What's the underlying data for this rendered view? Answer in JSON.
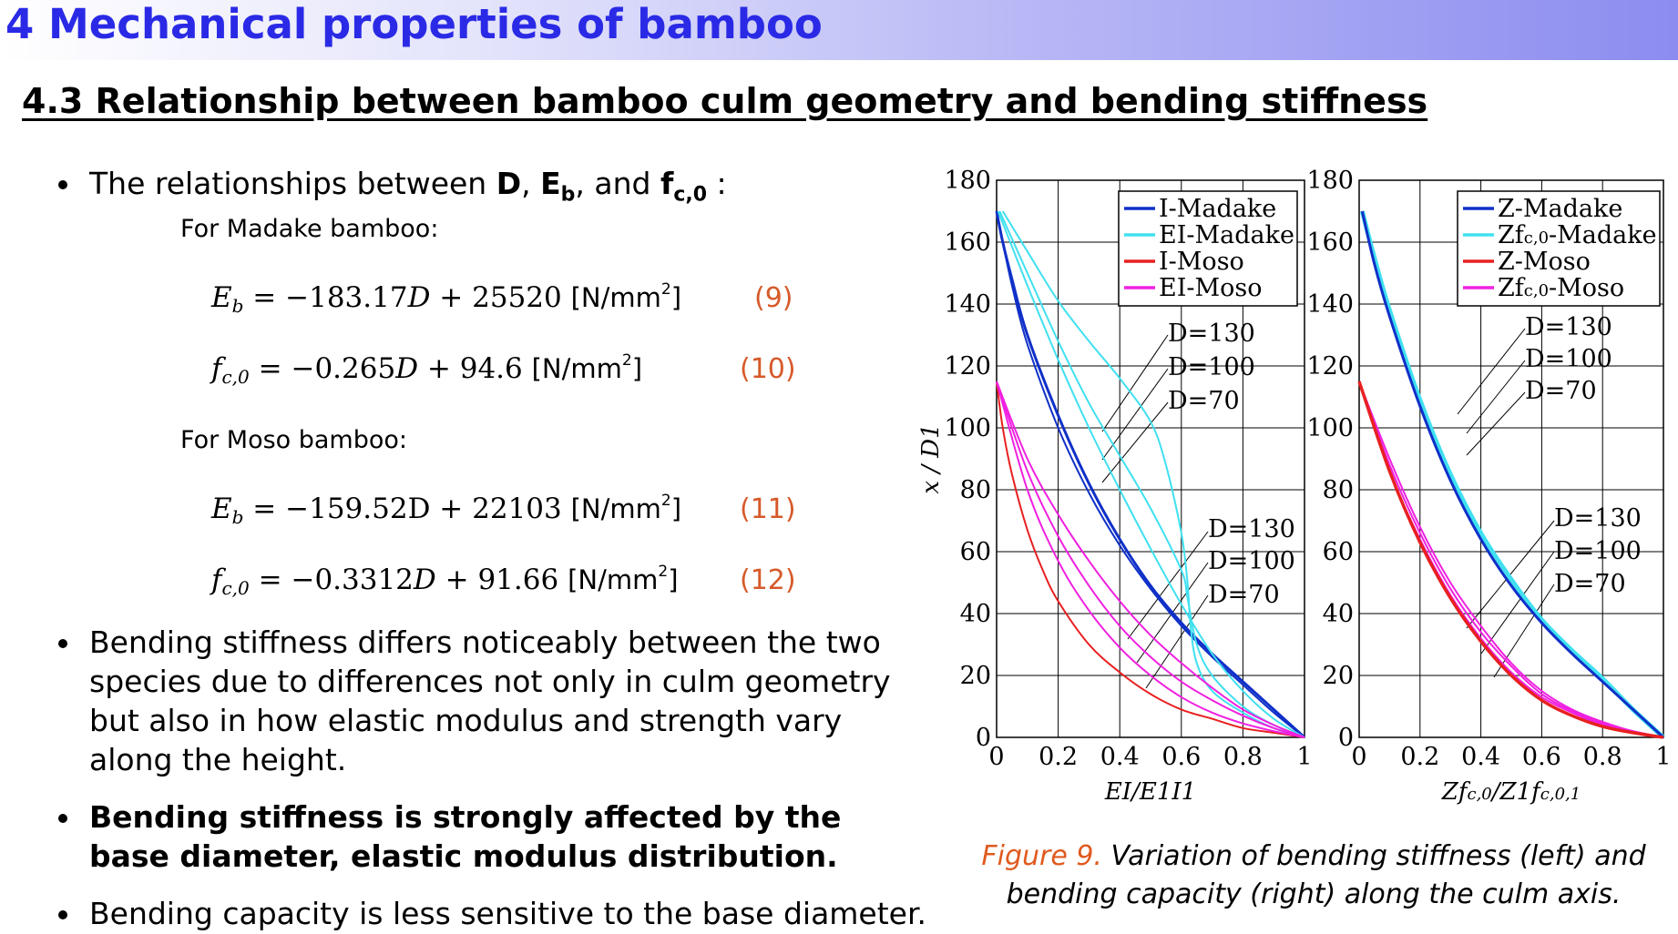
{
  "header": {
    "section_title": "4  Mechanical properties of bamboo",
    "subsection_title": "4.3  Relationship between bamboo culm geometry and bending stiffness"
  },
  "intro": {
    "text_a": "The relationships between ",
    "D": "D",
    "comma1": ", ",
    "E": "E",
    "E_sub": "b",
    "comma2": ", and ",
    "f": "f",
    "f_sub": "c,0",
    "colon": " :"
  },
  "madake": {
    "label": "For Madake bamboo:",
    "eq9": {
      "lhs": "E",
      "lhs_sub": "b",
      "rhs_a": " = −183.17",
      "var": "D",
      "rhs_b": " + 25520 ",
      "unit": "[N/mm",
      "unit_sup": "2",
      "unit_end": "]",
      "num": "(9)"
    },
    "eq10": {
      "lhs": "f",
      "lhs_sub": "c,0",
      "rhs_a": " = −0.265",
      "var": "D",
      "rhs_b": " + 94.6 ",
      "unit": "[N/mm",
      "unit_sup": "2",
      "unit_end": "]",
      "num": "(10)"
    }
  },
  "moso": {
    "label": "For Moso bamboo:",
    "eq11": {
      "lhs": "E",
      "lhs_sub": "b",
      "rhs": " = −159.52D  +  22103 ",
      "unit": "[N/mm",
      "unit_sup": "2",
      "unit_end": "]",
      "num": "(11)"
    },
    "eq12": {
      "lhs": "f",
      "lhs_sub": "c,0",
      "rhs_a": " = −0.3312",
      "var": "D",
      "rhs_b": " + 91.66  ",
      "unit": "[N/mm",
      "unit_sup": "2",
      "unit_end": "]",
      "num": "(12)"
    }
  },
  "bullets": {
    "b2": "Bending stiffness differs noticeably between the two species due to differences not only in culm geometry but also in how elastic modulus and strength vary along the height.",
    "b3": "Bending stiffness is strongly affected by the base diameter, elastic modulus distribution.",
    "b4": "Bending capacity is less sensitive to the base diameter."
  },
  "caption": {
    "fig": "Figure 9.",
    "text": " Variation of bending stiffness (left) and bending capacity (right) along the culm axis."
  },
  "colors": {
    "madake_I": "#1030c8",
    "madake_EI": "#40e0f0",
    "moso_I": "#e82020",
    "moso_EI": "#f020e0",
    "banner_title": "#2a2ae6",
    "eq_num": "#d65a2a"
  },
  "chart_data": [
    {
      "type": "line",
      "title": "",
      "xlabel": "EI/E1I1",
      "ylabel": "x / D1",
      "xlim": [
        0,
        1
      ],
      "ylim": [
        0,
        180
      ],
      "xticks": [
        "0",
        "0.2",
        "0.4",
        "0.6",
        "0.8",
        "1"
      ],
      "yticks": [
        "0",
        "20",
        "40",
        "60",
        "80",
        "100",
        "120",
        "140",
        "160",
        "180"
      ],
      "grid": true,
      "legend_position": "top-right",
      "legend": [
        "I-Madake",
        "EI-Madake",
        "I-Moso",
        "EI-Moso"
      ],
      "annotations_upper": [
        "D=130",
        "D=100",
        "D=70"
      ],
      "annotations_lower": [
        "D=130",
        "D=100",
        "D=70"
      ],
      "series": [
        {
          "name": "I-Madake",
          "color": "#1030c8",
          "width": 3,
          "points": [
            [
              0,
              170
            ],
            [
              0.02,
              160
            ],
            [
              0.05,
              148
            ],
            [
              0.1,
              130
            ],
            [
              0.2,
              104
            ],
            [
              0.3,
              82
            ],
            [
              0.4,
              64
            ],
            [
              0.5,
              49
            ],
            [
              0.6,
              37
            ],
            [
              0.7,
              27
            ],
            [
              0.8,
              18
            ],
            [
              0.9,
              9
            ],
            [
              1,
              0
            ]
          ]
        },
        {
          "name": "I-Madake",
          "color": "#1030c8",
          "width": 2,
          "points": [
            [
              0,
              170
            ],
            [
              0.02,
              160
            ],
            [
              0.05,
              146
            ],
            [
              0.1,
              127
            ],
            [
              0.2,
              100
            ],
            [
              0.3,
              79
            ],
            [
              0.4,
              62
            ],
            [
              0.5,
              48
            ],
            [
              0.6,
              36
            ],
            [
              0.7,
              26
            ],
            [
              0.8,
              17
            ],
            [
              0.9,
              8
            ],
            [
              1,
              0
            ]
          ]
        },
        {
          "name": "EI-Madake",
          "color": "#40e0f0",
          "width": 2,
          "points": [
            [
              0.02,
              170
            ],
            [
              0.1,
              157
            ],
            [
              0.2,
              141
            ],
            [
              0.3,
              128
            ],
            [
              0.4,
              116
            ],
            [
              0.5,
              102
            ],
            [
              0.55,
              88
            ],
            [
              0.6,
              66
            ],
            [
              0.62,
              50
            ],
            [
              0.63,
              36
            ],
            [
              0.65,
              24
            ],
            [
              0.7,
              15
            ],
            [
              0.8,
              8
            ],
            [
              0.9,
              3
            ],
            [
              1,
              0
            ]
          ]
        },
        {
          "name": "EI-Madake",
          "color": "#40e0f0",
          "width": 2,
          "points": [
            [
              0.01,
              170
            ],
            [
              0.1,
              150
            ],
            [
              0.2,
              128
            ],
            [
              0.3,
              108
            ],
            [
              0.4,
              91
            ],
            [
              0.5,
              74
            ],
            [
              0.6,
              54
            ],
            [
              0.62,
              45
            ],
            [
              0.65,
              30
            ],
            [
              0.7,
              20
            ],
            [
              0.8,
              10
            ],
            [
              0.9,
              4
            ],
            [
              1,
              0
            ]
          ]
        },
        {
          "name": "EI-Madake",
          "color": "#40e0f0",
          "width": 2,
          "points": [
            [
              0.005,
              170
            ],
            [
              0.1,
              146
            ],
            [
              0.2,
              122
            ],
            [
              0.3,
              100
            ],
            [
              0.4,
              80
            ],
            [
              0.5,
              61
            ],
            [
              0.6,
              43
            ],
            [
              0.7,
              27
            ],
            [
              0.8,
              15
            ],
            [
              0.9,
              6
            ],
            [
              1,
              0
            ]
          ]
        },
        {
          "name": "I-Moso",
          "color": "#e82020",
          "width": 2,
          "points": [
            [
              0,
              115
            ],
            [
              0.02,
              100
            ],
            [
              0.05,
              85
            ],
            [
              0.1,
              67
            ],
            [
              0.15,
              54
            ],
            [
              0.2,
              44
            ],
            [
              0.3,
              30
            ],
            [
              0.4,
              21
            ],
            [
              0.5,
              14
            ],
            [
              0.6,
              9
            ],
            [
              0.7,
              6
            ],
            [
              0.8,
              3
            ],
            [
              0.9,
              1.5
            ],
            [
              1,
              0
            ]
          ]
        },
        {
          "name": "EI-Moso",
          "color": "#f020e0",
          "width": 2,
          "points": [
            [
              0,
              115
            ],
            [
              0.1,
              90
            ],
            [
              0.2,
              72
            ],
            [
              0.3,
              57
            ],
            [
              0.4,
              44
            ],
            [
              0.5,
              33
            ],
            [
              0.6,
              24
            ],
            [
              0.7,
              16
            ],
            [
              0.8,
              9
            ],
            [
              0.9,
              4
            ],
            [
              1,
              0
            ]
          ]
        },
        {
          "name": "EI-Moso",
          "color": "#f020e0",
          "width": 2,
          "points": [
            [
              0,
              115
            ],
            [
              0.1,
              86
            ],
            [
              0.2,
              65
            ],
            [
              0.3,
              49
            ],
            [
              0.4,
              36
            ],
            [
              0.5,
              26
            ],
            [
              0.6,
              18
            ],
            [
              0.7,
              12
            ],
            [
              0.8,
              7
            ],
            [
              0.9,
              3
            ],
            [
              1,
              0
            ]
          ]
        },
        {
          "name": "EI-Moso",
          "color": "#f020e0",
          "width": 2,
          "points": [
            [
              0,
              115
            ],
            [
              0.1,
              80
            ],
            [
              0.2,
              57
            ],
            [
              0.3,
              41
            ],
            [
              0.4,
              29
            ],
            [
              0.5,
              20
            ],
            [
              0.6,
              13
            ],
            [
              0.7,
              8
            ],
            [
              0.8,
              4.5
            ],
            [
              0.9,
              2
            ],
            [
              1,
              0
            ]
          ]
        }
      ]
    },
    {
      "type": "line",
      "title": "",
      "xlabel": "Zfc,0/Z1fc,0,1",
      "ylabel": "",
      "xlim": [
        0,
        1
      ],
      "ylim": [
        0,
        180
      ],
      "xticks": [
        "0",
        "0.2",
        "0.4",
        "0.6",
        "0.8",
        "1"
      ],
      "yticks": [
        "0",
        "20",
        "40",
        "60",
        "80",
        "100",
        "120",
        "140",
        "160",
        "180"
      ],
      "grid": true,
      "legend_position": "top-right",
      "legend": [
        "Z-Madake",
        "Zfc,0-Madake",
        "Z-Moso",
        "Zfc,0-Moso"
      ],
      "annotations_upper": [
        "D=130",
        "D=100",
        "D=70"
      ],
      "annotations_lower": [
        "D=130",
        "D=100",
        "D=70"
      ],
      "series": [
        {
          "name": "Zfc,0-Madake",
          "color": "#40e0f0",
          "width": 5,
          "points": [
            [
              0.01,
              170
            ],
            [
              0.05,
              155
            ],
            [
              0.1,
              138
            ],
            [
              0.2,
              109
            ],
            [
              0.3,
              85
            ],
            [
              0.4,
              66
            ],
            [
              0.5,
              51
            ],
            [
              0.6,
              38
            ],
            [
              0.7,
              28
            ],
            [
              0.8,
              19
            ],
            [
              0.9,
              9
            ],
            [
              1,
              0
            ]
          ]
        },
        {
          "name": "Z-Madake",
          "color": "#1030c8",
          "width": 3,
          "points": [
            [
              0.01,
              170
            ],
            [
              0.05,
              153
            ],
            [
              0.1,
              136
            ],
            [
              0.2,
              107
            ],
            [
              0.3,
              83
            ],
            [
              0.4,
              64
            ],
            [
              0.5,
              49
            ],
            [
              0.6,
              37
            ],
            [
              0.7,
              27
            ],
            [
              0.8,
              18
            ],
            [
              0.9,
              9
            ],
            [
              1,
              0
            ]
          ]
        },
        {
          "name": "Zfc,0-Moso",
          "color": "#f020e0",
          "width": 2,
          "points": [
            [
              0,
              115
            ],
            [
              0.1,
              90
            ],
            [
              0.2,
              68
            ],
            [
              0.3,
              50
            ],
            [
              0.4,
              36
            ],
            [
              0.5,
              24
            ],
            [
              0.6,
              15
            ],
            [
              0.7,
              9
            ],
            [
              0.8,
              5
            ],
            [
              0.9,
              2
            ],
            [
              1,
              0
            ]
          ]
        },
        {
          "name": "Zfc,0-Moso",
          "color": "#f020e0",
          "width": 2,
          "points": [
            [
              0,
              115
            ],
            [
              0.1,
              88
            ],
            [
              0.2,
              66
            ],
            [
              0.3,
              48
            ],
            [
              0.4,
              34
            ],
            [
              0.5,
              23
            ],
            [
              0.6,
              14
            ],
            [
              0.7,
              8.5
            ],
            [
              0.8,
              4.5
            ],
            [
              0.9,
              2
            ],
            [
              1,
              0
            ]
          ]
        },
        {
          "name": "Zfc,0-Moso",
          "color": "#f020e0",
          "width": 2,
          "points": [
            [
              0,
              115
            ],
            [
              0.1,
              86
            ],
            [
              0.2,
              64
            ],
            [
              0.3,
              46
            ],
            [
              0.4,
              32
            ],
            [
              0.5,
              21
            ],
            [
              0.6,
              13
            ],
            [
              0.7,
              8
            ],
            [
              0.8,
              4
            ],
            [
              0.9,
              1.8
            ],
            [
              1,
              0
            ]
          ]
        },
        {
          "name": "Z-Moso",
          "color": "#e82020",
          "width": 3.5,
          "points": [
            [
              0,
              115
            ],
            [
              0.1,
              86
            ],
            [
              0.2,
              63
            ],
            [
              0.3,
              45
            ],
            [
              0.4,
              31
            ],
            [
              0.5,
              20
            ],
            [
              0.6,
              12
            ],
            [
              0.7,
              7
            ],
            [
              0.8,
              3.5
            ],
            [
              0.9,
              1.5
            ],
            [
              1,
              0
            ]
          ]
        }
      ]
    }
  ]
}
